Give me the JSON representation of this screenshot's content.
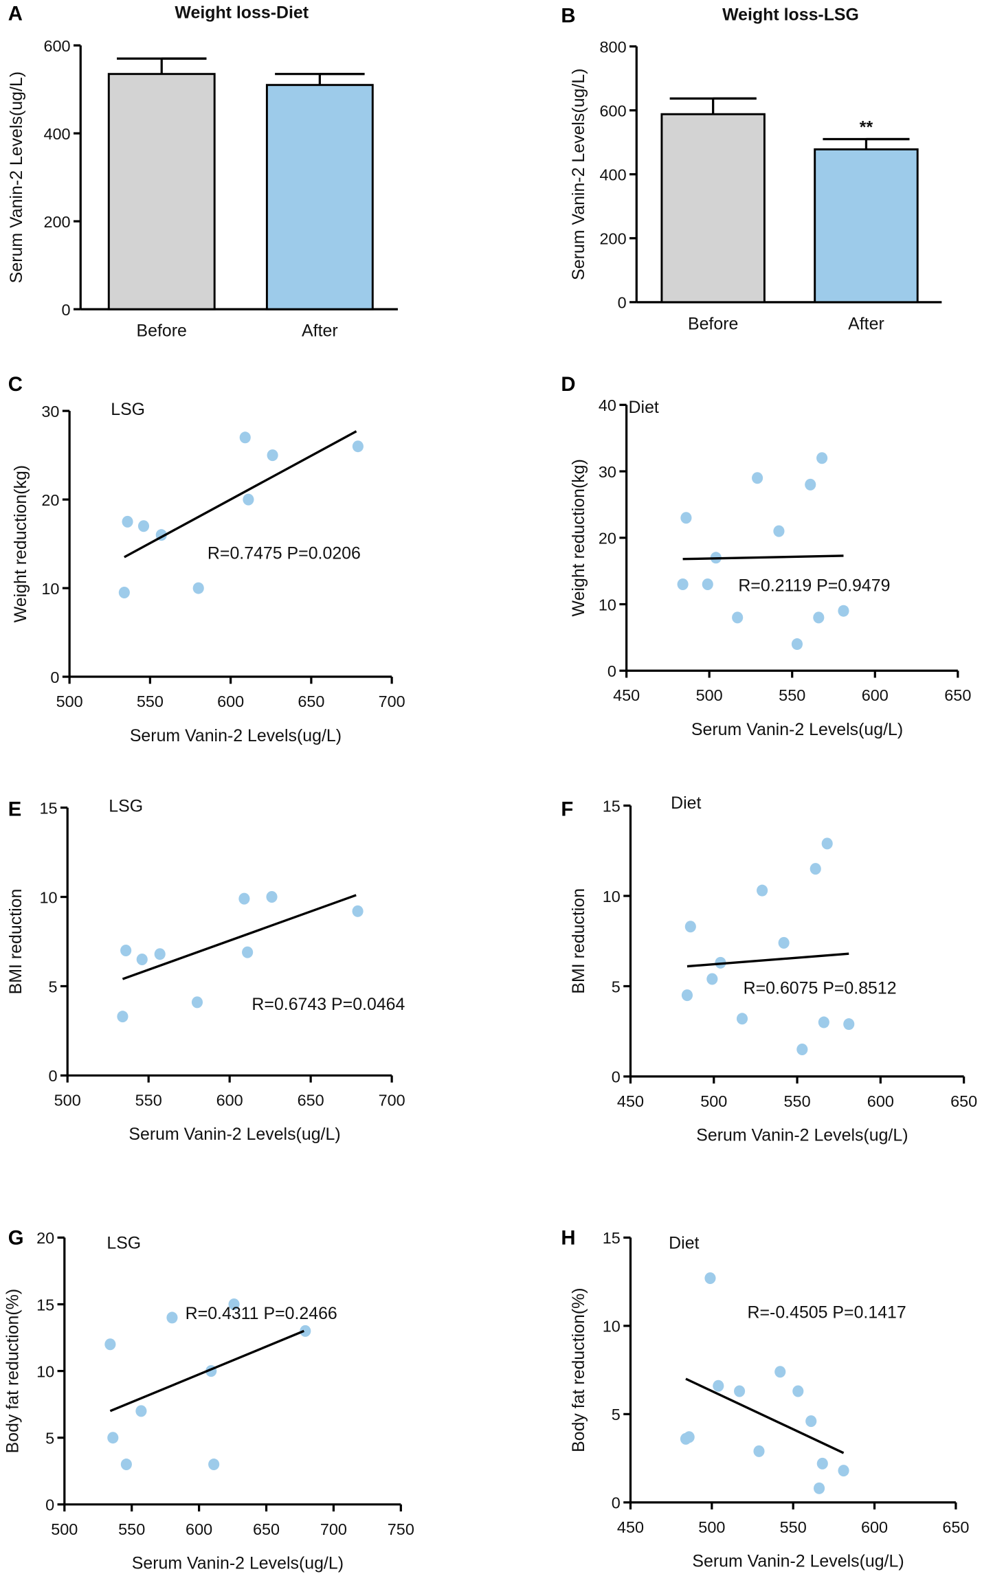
{
  "colors": {
    "before": "#d3d3d3",
    "after": "#9dcbea",
    "point": "#9dcbea",
    "line": "#000000"
  },
  "chart_data": [
    {
      "panel": "A",
      "type": "bar",
      "title": "Weight loss-Diet",
      "ylabel": "Serum Vanin-2 Levels(ug/L)",
      "categories": [
        "Before",
        "After"
      ],
      "values": [
        535,
        510
      ],
      "errors": [
        35,
        25
      ],
      "yticks": [
        0,
        200,
        400,
        600
      ],
      "ylim": [
        0,
        600
      ],
      "annotations": [
        "",
        ""
      ]
    },
    {
      "panel": "B",
      "type": "bar",
      "title": "Weight loss-LSG",
      "ylabel": "Serum Vanin-2 Levels(ug/L)",
      "categories": [
        "Before",
        "After"
      ],
      "values": [
        588,
        478
      ],
      "errors": [
        49,
        32
      ],
      "yticks": [
        0,
        200,
        400,
        600,
        800
      ],
      "ylim": [
        0,
        800
      ],
      "annotations": [
        "",
        "**"
      ]
    },
    {
      "panel": "C",
      "type": "scatter",
      "group": "LSG",
      "xlabel": "Serum Vanin-2 Levels(ug/L)",
      "ylabel": "Weight reduction(kg)",
      "stat": "R=0.7475 P=0.0206",
      "xlim": [
        500,
        700
      ],
      "xticks": [
        500,
        550,
        600,
        650,
        700
      ],
      "ylim": [
        0,
        30
      ],
      "yticks": [
        0,
        10,
        20,
        30
      ],
      "x": [
        534,
        536,
        546,
        557,
        580,
        609,
        611,
        626,
        679
      ],
      "y": [
        9.5,
        17.5,
        17,
        16,
        10,
        27,
        20,
        25,
        26
      ],
      "fit": [
        [
          534,
          13.5
        ],
        [
          678,
          27.7
        ]
      ]
    },
    {
      "panel": "D",
      "type": "scatter",
      "group": "Diet",
      "xlabel": "Serum Vanin-2 Levels(ug/L)",
      "ylabel": "Weight reduction(kg)",
      "stat": "R=0.2119 P=0.9479",
      "xlim": [
        450,
        650
      ],
      "xticks": [
        450,
        500,
        550,
        600,
        650
      ],
      "ylim": [
        0,
        40
      ],
      "yticks": [
        0,
        10,
        20,
        30,
        40
      ],
      "x": [
        484,
        486,
        499,
        504,
        517,
        529,
        542,
        553,
        561,
        566,
        568,
        581
      ],
      "y": [
        13,
        23,
        13,
        17,
        8,
        29,
        21,
        4,
        28,
        8,
        32,
        9
      ],
      "fit": [
        [
          484,
          16.8
        ],
        [
          581,
          17.3
        ]
      ]
    },
    {
      "panel": "E",
      "type": "scatter",
      "group": "LSG",
      "xlabel": "Serum Vanin-2 Levels(ug/L)",
      "ylabel": "BMI reduction",
      "stat": "R=0.6743 P=0.0464",
      "xlim": [
        500,
        700
      ],
      "xticks": [
        500,
        550,
        600,
        650,
        700
      ],
      "ylim": [
        0,
        15
      ],
      "yticks": [
        0,
        5,
        10,
        15
      ],
      "x": [
        534,
        536,
        546,
        557,
        580,
        609,
        611,
        626,
        679
      ],
      "y": [
        3.3,
        7,
        6.5,
        6.8,
        4.1,
        9.9,
        6.9,
        10,
        9.2
      ],
      "fit": [
        [
          534,
          5.4
        ],
        [
          678,
          10.1
        ]
      ]
    },
    {
      "panel": "F",
      "type": "scatter",
      "group": "Diet",
      "xlabel": "Serum Vanin-2 Levels(ug/L)",
      "ylabel": "BMI reduction",
      "stat": "R=0.6075 P=0.8512",
      "xlim": [
        450,
        650
      ],
      "xticks": [
        450,
        500,
        550,
        600,
        650
      ],
      "ylim": [
        0,
        15
      ],
      "yticks": [
        0,
        5,
        10,
        15
      ],
      "x": [
        484,
        486,
        499,
        504,
        517,
        529,
        542,
        553,
        561,
        566,
        568,
        581
      ],
      "y": [
        4.5,
        8.3,
        5.4,
        6.3,
        3.2,
        10.3,
        7.4,
        1.5,
        11.5,
        3.0,
        12.9,
        2.9
      ],
      "fit": [
        [
          484,
          6.1
        ],
        [
          581,
          6.8
        ]
      ]
    },
    {
      "panel": "G",
      "type": "scatter",
      "group": "LSG",
      "xlabel": "Serum Vanin-2 Levels(ug/L)",
      "ylabel": "Body fat reduction(%)",
      "stat": "R=0.4311 P=0.2466",
      "xlim": [
        500,
        750
      ],
      "xticks": [
        500,
        550,
        600,
        650,
        700,
        750
      ],
      "ylim": [
        0,
        20
      ],
      "yticks": [
        0,
        5,
        10,
        15,
        20
      ],
      "x": [
        534,
        536,
        546,
        557,
        580,
        609,
        611,
        626,
        679
      ],
      "y": [
        12,
        5,
        3,
        7,
        14,
        10,
        3,
        15,
        13
      ],
      "fit": [
        [
          534,
          7
        ],
        [
          678,
          13
        ]
      ]
    },
    {
      "panel": "H",
      "type": "scatter",
      "group": "Diet",
      "xlabel": "Serum Vanin-2 Levels(ug/L)",
      "ylabel": "Body fat reduction(%)",
      "stat": "R=-0.4505 P=0.1417",
      "xlim": [
        450,
        650
      ],
      "xticks": [
        450,
        500,
        550,
        600,
        650
      ],
      "ylim": [
        0,
        15
      ],
      "yticks": [
        0,
        5,
        10,
        15
      ],
      "x": [
        484,
        486,
        499,
        504,
        517,
        529,
        542,
        553,
        561,
        566,
        568,
        581
      ],
      "y": [
        3.6,
        3.7,
        12.7,
        6.6,
        6.3,
        2.9,
        7.4,
        6.3,
        4.6,
        0.8,
        2.2,
        1.8
      ],
      "fit": [
        [
          484,
          7
        ],
        [
          581,
          2.8
        ]
      ]
    }
  ]
}
